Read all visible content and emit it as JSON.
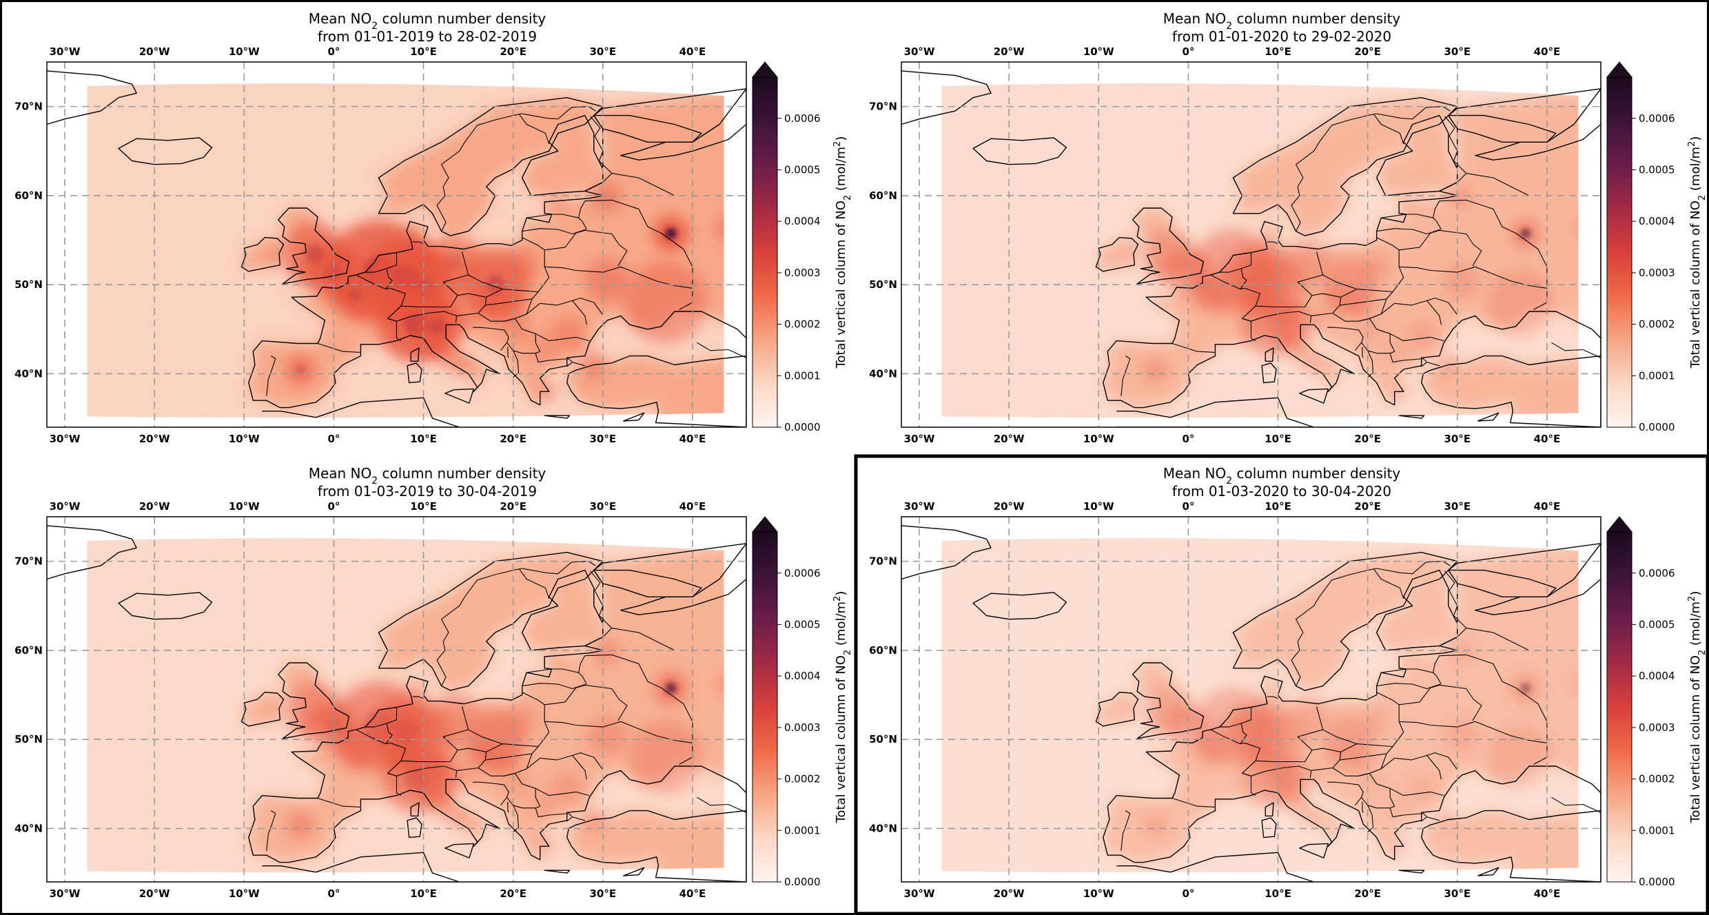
{
  "figure": {
    "panels": [
      {
        "id": "p1",
        "title_prefix": "Mean NO",
        "title_sub": "2",
        "title_suffix": " column number density",
        "date_line": "from 01-01-2019 to 28-02-2019",
        "intensity": 1.0,
        "highlighted": false
      },
      {
        "id": "p2",
        "title_prefix": "Mean NO",
        "title_sub": "2",
        "title_suffix": " column number density",
        "date_line": "from 01-01-2020 to 29-02-2020",
        "intensity": 0.55,
        "highlighted": false
      },
      {
        "id": "p3",
        "title_prefix": "Mean NO",
        "title_sub": "2",
        "title_suffix": " column number density",
        "date_line": "from 01-03-2019 to 30-04-2019",
        "intensity": 0.7,
        "highlighted": false
      },
      {
        "id": "p4",
        "title_prefix": "Mean NO",
        "title_sub": "2",
        "title_suffix": " column number density",
        "date_line": "from 01-03-2020 to 30-04-2020",
        "intensity": 0.4,
        "highlighted": true
      }
    ],
    "lon_ticks": [
      "30°W",
      "20°W",
      "10°W",
      "0°",
      "10°E",
      "20°E",
      "30°E",
      "40°E"
    ],
    "lat_ticks": [
      "70°N",
      "60°N",
      "50°N",
      "40°N"
    ],
    "colorbar": {
      "ticks": [
        "0.0006",
        "0.0005",
        "0.0004",
        "0.0003",
        "0.0002",
        "0.0001",
        "0.0000"
      ],
      "label_prefix": "Total vertical column of NO",
      "label_sub": "2",
      "label_mid": " (mol/m",
      "label_sup": "2",
      "label_suffix": ")",
      "colors": [
        "#fff5f0",
        "#fbd7c4",
        "#f7a583",
        "#f06a48",
        "#d8403b",
        "#a32a45",
        "#6a1d4b",
        "#3b1437",
        "#1c0a1e"
      ]
    },
    "colors": {
      "land_base": "#f7a888",
      "ocean_base": "#fbd3c1",
      "coast": "#000000",
      "grid": "#9a9a9a",
      "hotspot": "#3b1437"
    }
  }
}
